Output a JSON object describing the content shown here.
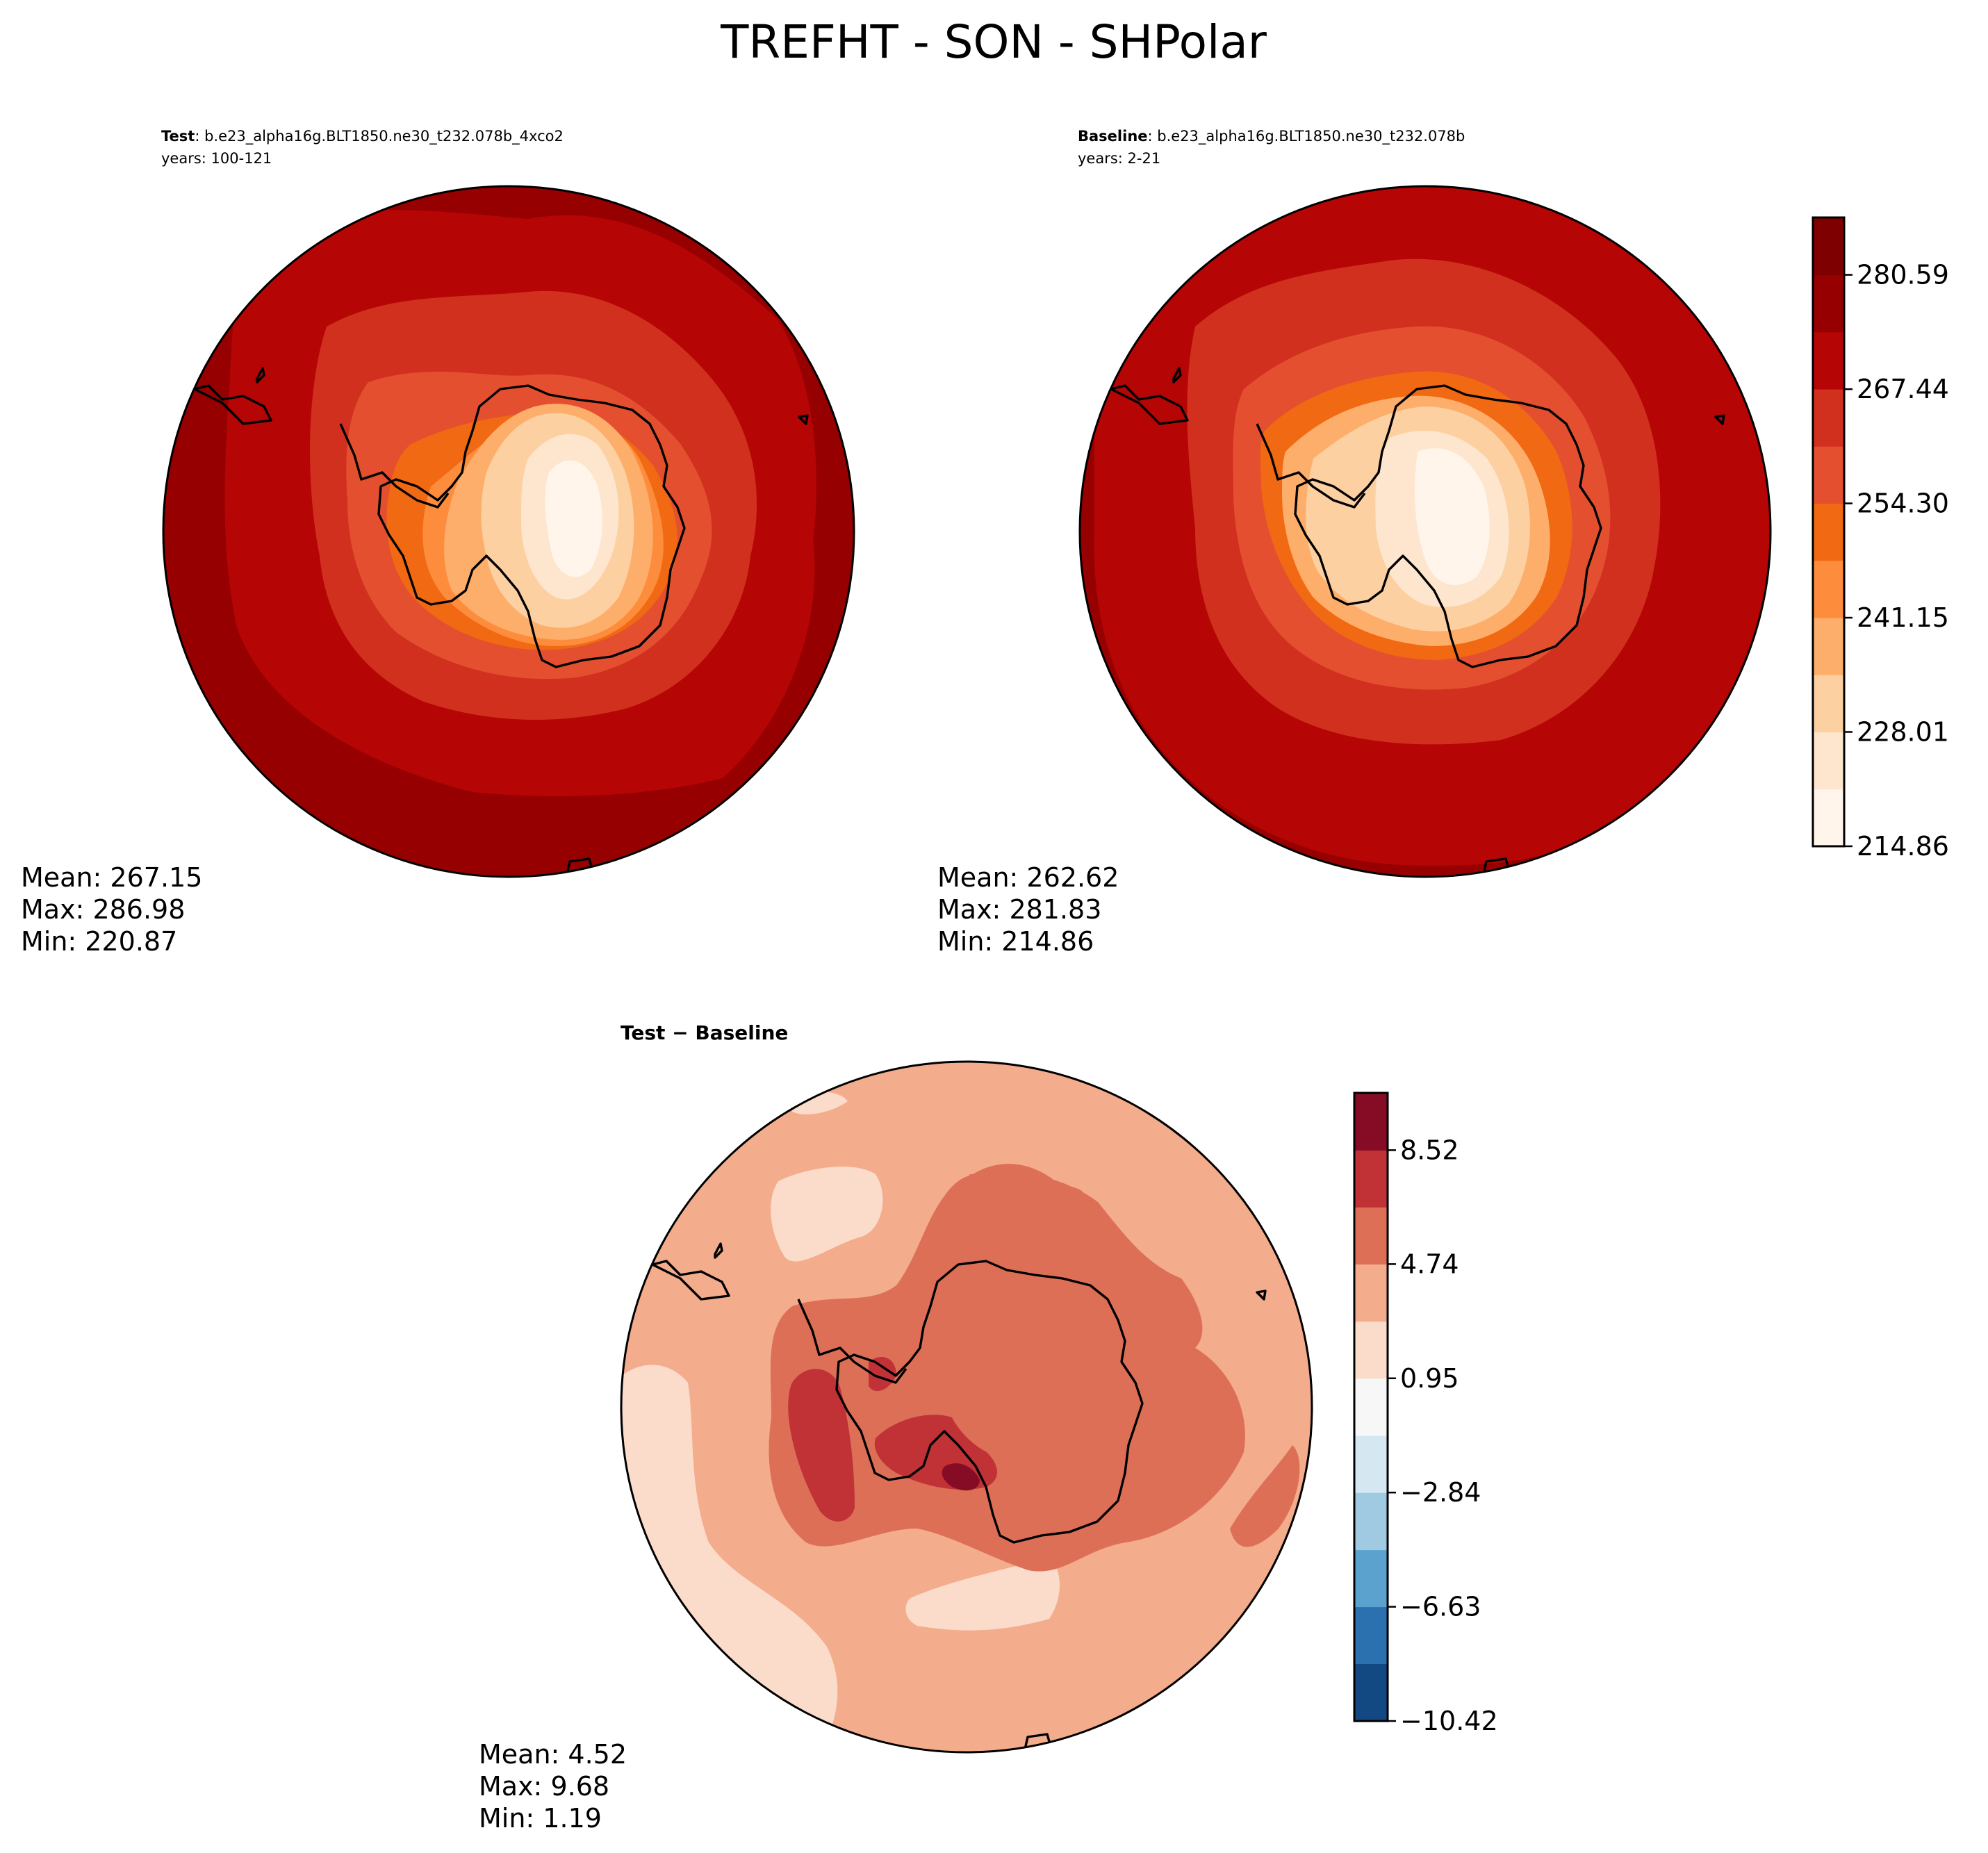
{
  "chart_data": {
    "type": "contour-map",
    "title": "TREFHT - SON - SHPolar",
    "panels": [
      {
        "id": "test",
        "label_bold": "Test",
        "label_rest": ": b.e23_alpha16g.BLT1850.ne30_t232.078b_4xco2",
        "years": "years: 100-121",
        "stats": {
          "mean": "Mean: 267.15",
          "max": "Max: 286.98",
          "min": "Min: 220.87"
        }
      },
      {
        "id": "baseline",
        "label_bold": "Baseline",
        "label_rest": ": b.e23_alpha16g.BLT1850.ne30_t232.078b",
        "years": "years: 2-21",
        "stats": {
          "mean": "Mean: 262.62",
          "max": "Max: 281.83",
          "min": "Min: 214.86"
        }
      },
      {
        "id": "diff",
        "title": "Test − Baseline",
        "stats": {
          "mean": "Mean:  4.52",
          "max": "Max:  9.68",
          "min": "Min:  1.19"
        }
      }
    ],
    "colorbar_main": {
      "range": [
        214.86,
        287.19
      ],
      "levels": [
        214.86,
        221.43,
        228.01,
        234.58,
        241.15,
        247.73,
        254.3,
        260.87,
        267.44,
        274.02,
        280.59,
        287.19
      ],
      "tick_values": [
        214.86,
        228.01,
        241.15,
        254.3,
        267.44,
        280.59
      ],
      "tick_labels": [
        "214.86",
        "228.01",
        "241.15",
        "254.30",
        "267.44",
        "280.59"
      ],
      "colors": [
        "#fff5eb",
        "#fee6ce",
        "#fdd0a2",
        "#fdae6b",
        "#fd8d3c",
        "#f16913",
        "#e4502f",
        "#d1301f",
        "#b50504",
        "#960000",
        "#7f0000"
      ]
    },
    "colorbar_diff": {
      "range": [
        -10.42,
        10.42
      ],
      "levels": [
        -10.42,
        -8.52,
        -6.63,
        -4.74,
        -2.84,
        -0.95,
        0.95,
        2.84,
        4.74,
        6.63,
        8.52,
        10.42
      ],
      "tick_values": [
        -10.42,
        -6.63,
        -2.84,
        0.95,
        4.74,
        8.52
      ],
      "tick_labels": [
        "−10.42",
        "−6.63",
        "−2.84",
        "0.95",
        "4.74",
        "8.52"
      ],
      "colors": [
        "#124983",
        "#2b71b0",
        "#5ba3ce",
        "#9fcae1",
        "#d5e7f1",
        "#f7f7f7",
        "#fbdbc9",
        "#f3ac8c",
        "#de6f57",
        "#c03236",
        "#860c26"
      ]
    }
  }
}
